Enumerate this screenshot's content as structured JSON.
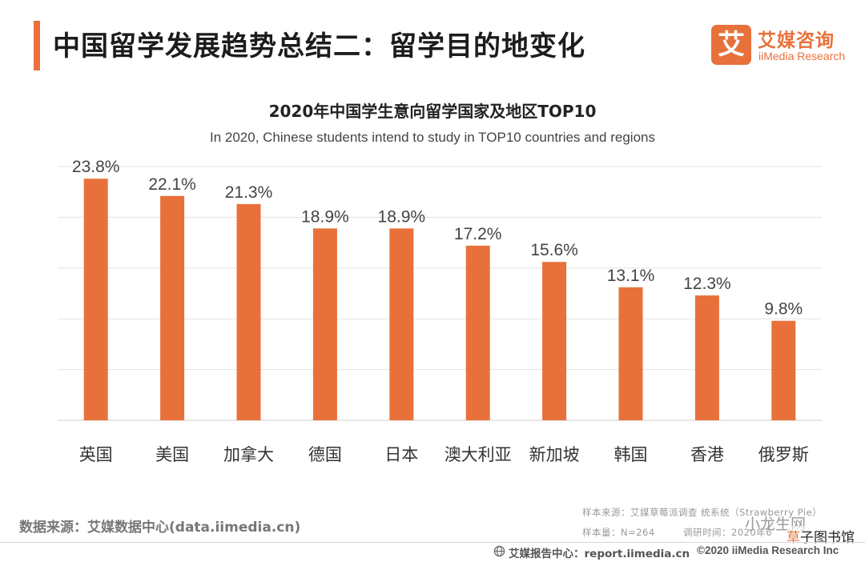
{
  "header": {
    "title": "中国留学发展趋势总结二：留学目的地变化",
    "logo_mark": "艾",
    "logo_cn": "艾媒咨询",
    "logo_en": "iiMedia Research"
  },
  "chart_data": {
    "type": "bar",
    "title": "2020年中国学生意向留学国家及地区TOP10",
    "subtitle": "In 2020, Chinese students intend to study in TOP10 countries and regions",
    "categories": [
      "英国",
      "美国",
      "加拿大",
      "德国",
      "日本",
      "澳大利亚",
      "新加坡",
      "韩国",
      "香港",
      "俄罗斯"
    ],
    "values": [
      23.8,
      22.1,
      21.3,
      18.9,
      18.9,
      17.2,
      15.6,
      13.1,
      12.3,
      9.8
    ],
    "value_labels": [
      "23.8%",
      "22.1%",
      "21.3%",
      "18.9%",
      "18.9%",
      "17.2%",
      "15.6%",
      "13.1%",
      "12.3%",
      "9.8%"
    ],
    "unit": "%",
    "ylim": [
      0,
      25
    ],
    "gridlines": [
      0,
      5,
      10,
      15,
      20,
      25
    ],
    "grid": true,
    "legend": "none",
    "colors": {
      "bar": "#e8713b",
      "grid": "#e3e3e3",
      "accent": "#e8713b"
    }
  },
  "footer": {
    "data_source": "数据来源：艾媒数据中心(data.iimedia.cn)",
    "sample_source": "样本来源：艾媒草莓派调查  统系统（Strawberry Pie）",
    "sample_size": "样本量：N=264",
    "survey_time": "调研时间：2020年6",
    "watermark": "小龙生网",
    "watermark2_a": "草",
    "watermark2_b": "子图书馆",
    "report_center": "艾媒报告中心：report.iimedia.cn",
    "copyright": "©2020  iiMedia Research  Inc"
  }
}
